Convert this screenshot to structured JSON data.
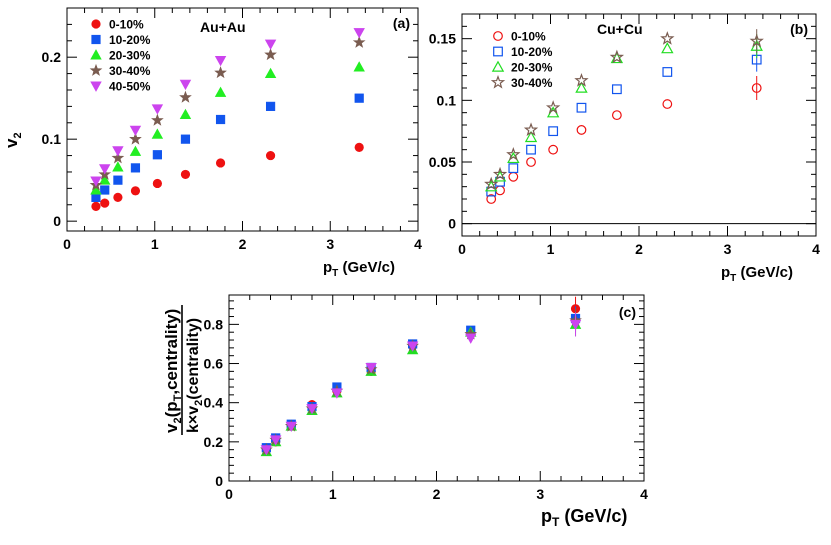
{
  "chart_data": [
    {
      "id": "a",
      "type": "scatter",
      "panel_label": "(a)",
      "title": "Au+Au",
      "xlabel": "p",
      "xlabel_sub": "T",
      "xlabel_unit": " (GeV/c)",
      "ylabel": "v",
      "ylabel_sub": "2",
      "xlim": [
        0,
        4
      ],
      "ylim": [
        -0.012,
        0.26
      ],
      "xticks": [
        0,
        1,
        2,
        3,
        4
      ],
      "yticks": [
        0,
        0.1,
        0.2
      ],
      "ytick_labels": [
        "0",
        "0.1",
        "0.2"
      ],
      "x": [
        0.33,
        0.43,
        0.58,
        0.78,
        1.03,
        1.35,
        1.75,
        2.32,
        3.33
      ],
      "series": [
        {
          "name": "0-10%",
          "marker": "circle",
          "color": "#ee1111",
          "filled": true,
          "values": [
            0.018,
            0.022,
            0.029,
            0.037,
            0.046,
            0.057,
            0.071,
            0.08,
            0.09
          ]
        },
        {
          "name": "10-20%",
          "marker": "square",
          "color": "#1155ee",
          "filled": true,
          "values": [
            0.029,
            0.038,
            0.05,
            0.065,
            0.081,
            0.1,
            0.124,
            0.14,
            0.15
          ]
        },
        {
          "name": "20-30%",
          "marker": "triangle",
          "color": "#22ee22",
          "filled": true,
          "values": [
            0.038,
            0.05,
            0.066,
            0.085,
            0.106,
            0.13,
            0.157,
            0.18,
            0.188
          ]
        },
        {
          "name": "30-40%",
          "marker": "star",
          "color": "#7a5c50",
          "filled": true,
          "values": [
            0.044,
            0.057,
            0.077,
            0.1,
            0.123,
            0.151,
            0.181,
            0.203,
            0.218
          ]
        },
        {
          "name": "40-50%",
          "marker": "tridown",
          "color": "#cc44ee",
          "filled": true,
          "values": [
            0.049,
            0.064,
            0.086,
            0.111,
            0.137,
            0.167,
            0.196,
            0.216,
            0.23
          ]
        }
      ]
    },
    {
      "id": "b",
      "type": "scatter",
      "panel_label": "(b)",
      "title": "Cu+Cu",
      "xlabel": "p",
      "xlabel_sub": "T",
      "xlabel_unit": " (GeV/c)",
      "xlim": [
        0,
        4
      ],
      "ylim": [
        -0.01,
        0.17
      ],
      "xticks": [
        0,
        1,
        2,
        3,
        4
      ],
      "yticks": [
        0,
        0.05,
        0.1,
        0.15
      ],
      "ytick_labels": [
        "0",
        "0.05",
        "0.1",
        "0.15"
      ],
      "zero_line": true,
      "x": [
        0.33,
        0.43,
        0.58,
        0.78,
        1.03,
        1.35,
        1.75,
        2.32,
        3.33
      ],
      "series": [
        {
          "name": "0-10%",
          "marker": "circle",
          "color": "#ee1111",
          "filled": false,
          "values": [
            0.02,
            0.027,
            0.038,
            0.05,
            0.06,
            0.076,
            0.088,
            0.097,
            0.11
          ]
        },
        {
          "name": "10-20%",
          "marker": "square",
          "color": "#1155ee",
          "filled": false,
          "values": [
            0.026,
            0.034,
            0.045,
            0.06,
            0.075,
            0.094,
            0.109,
            0.123,
            0.133
          ]
        },
        {
          "name": "20-30%",
          "marker": "triangle",
          "color": "#22dd22",
          "filled": false,
          "values": [
            0.03,
            0.038,
            0.053,
            0.07,
            0.09,
            0.11,
            0.134,
            0.142,
            0.144
          ]
        },
        {
          "name": "30-40%",
          "marker": "star",
          "color": "#7a5c50",
          "filled": false,
          "values": [
            0.032,
            0.04,
            0.056,
            0.076,
            0.094,
            0.116,
            0.135,
            0.15,
            0.148
          ]
        }
      ]
    },
    {
      "id": "c",
      "type": "scatter",
      "panel_label": "(c)",
      "xlabel": "p",
      "xlabel_sub": "T",
      "xlabel_unit": " (GeV/c)",
      "ylabel_num_main": "v",
      "ylabel_num_sub": "2",
      "ylabel_num_paren": "(p",
      "ylabel_num_sub2": "T",
      "ylabel_num_tail": ",centrality)",
      "ylabel_den_main": "k×v",
      "ylabel_den_sub": "2",
      "ylabel_den_tail": "(centrality)",
      "xlim": [
        0,
        4
      ],
      "ylim": [
        0,
        0.95
      ],
      "xticks": [
        0,
        1,
        2,
        3,
        4
      ],
      "yticks": [
        0,
        0.2,
        0.4,
        0.6,
        0.8
      ],
      "ytick_labels": [
        "0",
        "0.2",
        "0.4",
        "0.6",
        "0.8"
      ],
      "x": [
        0.36,
        0.45,
        0.6,
        0.8,
        1.04,
        1.37,
        1.77,
        2.33,
        3.34
      ],
      "series": [
        {
          "name": "0-10%",
          "marker": "circle",
          "color": "#ee1111",
          "filled": true,
          "values": [
            0.16,
            0.2,
            0.28,
            0.39,
            0.46,
            0.56,
            0.69,
            0.75,
            0.88
          ]
        },
        {
          "name": "10-20%",
          "marker": "square",
          "color": "#1155ee",
          "filled": true,
          "values": [
            0.17,
            0.22,
            0.29,
            0.38,
            0.48,
            0.58,
            0.7,
            0.77,
            0.83
          ]
        },
        {
          "name": "20-30%",
          "marker": "triangle",
          "color": "#22dd22",
          "filled": true,
          "values": [
            0.15,
            0.2,
            0.28,
            0.36,
            0.45,
            0.56,
            0.67,
            0.76,
            0.8
          ]
        },
        {
          "name": "30-40%",
          "marker": "star",
          "color": "#7a5c50",
          "filled": true,
          "values": [
            0.16,
            0.21,
            0.28,
            0.37,
            0.46,
            0.57,
            0.69,
            0.75,
            0.82
          ]
        },
        {
          "name": "40-50%",
          "marker": "tridown",
          "color": "#cc44ee",
          "filled": true,
          "values": [
            0.16,
            0.21,
            0.28,
            0.37,
            0.45,
            0.58,
            0.69,
            0.73,
            0.8
          ]
        }
      ]
    }
  ]
}
